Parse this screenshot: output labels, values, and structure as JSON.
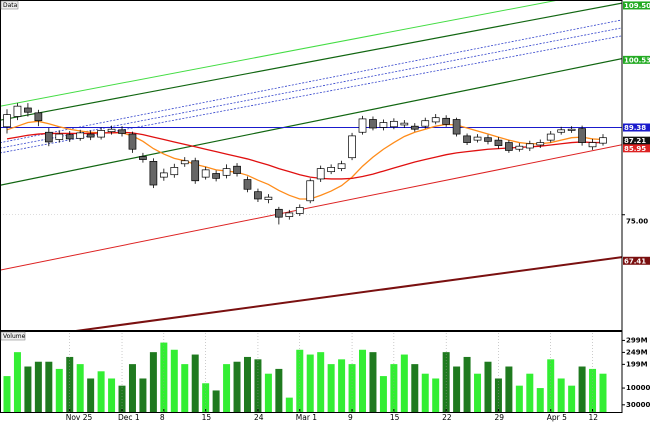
{
  "chart_data": {
    "type": "candlestick",
    "price_panel_label": "Data",
    "categories": [
      null,
      null,
      null,
      null,
      null,
      null,
      "Nov 25",
      null,
      null,
      null,
      null,
      "Dec 1",
      null,
      null,
      null,
      "8",
      null,
      null,
      null,
      "15",
      null,
      null,
      null,
      null,
      "24",
      null,
      null,
      null,
      "Mar 1",
      null,
      null,
      null,
      null,
      "9",
      null,
      null,
      null,
      "15",
      null,
      null,
      null,
      null,
      "22",
      null,
      null,
      null,
      null,
      "29",
      null,
      null,
      null,
      null,
      "Apr 5",
      null,
      null,
      null,
      "12",
      null
    ],
    "open": [
      89.5,
      91.2,
      92.6,
      91.8,
      88.6,
      87.4,
      88.2,
      87.6,
      88.3,
      87.8,
      88.7,
      89.0,
      88.3,
      84.6,
      83.8,
      81.2,
      81.6,
      83.4,
      83.9,
      81.2,
      81.8,
      81.5,
      83.0,
      80.8,
      78.8,
      77.5,
      75.9,
      74.7,
      75.2,
      77.3,
      80.9,
      82.1,
      82.6,
      84.4,
      88.6,
      90.7,
      89.4,
      89.5,
      89.8,
      89.6,
      89.6,
      90.3,
      90.9,
      90.7,
      88.0,
      87.3,
      87.7,
      87.3,
      86.9,
      85.8,
      86.0,
      86.5,
      87.3,
      88.6,
      88.9,
      89.2,
      86.2,
      86.8
    ],
    "high": [
      92.4,
      93.4,
      93.4,
      92.3,
      89.3,
      88.9,
      88.8,
      89.0,
      88.9,
      89.4,
      89.7,
      89.6,
      88.7,
      85.2,
      84.3,
      82.6,
      83.4,
      84.5,
      84.4,
      82.9,
      82.3,
      83.3,
      83.5,
      81.3,
      79.3,
      78.4,
      76.3,
      75.8,
      76.7,
      81.0,
      83.1,
      83.3,
      83.9,
      88.5,
      91.3,
      91.2,
      90.7,
      90.9,
      90.6,
      90.1,
      91.0,
      91.6,
      91.4,
      91.0,
      88.4,
      88.3,
      88.2,
      87.8,
      87.3,
      86.8,
      87.2,
      87.4,
      88.8,
      89.5,
      89.6,
      89.7,
      87.5,
      88.3
    ],
    "low": [
      88.4,
      90.6,
      91.2,
      89.6,
      86.3,
      86.9,
      87.0,
      87.2,
      87.3,
      87.4,
      88.2,
      87.9,
      85.2,
      83.6,
      79.4,
      80.6,
      81.1,
      82.9,
      80.1,
      80.8,
      80.5,
      81.0,
      81.3,
      78.7,
      77.1,
      76.9,
      73.4,
      74.2,
      74.8,
      76.9,
      80.4,
      81.7,
      82.2,
      84.0,
      88.2,
      88.9,
      88.9,
      89.1,
      89.3,
      88.7,
      89.2,
      89.9,
      89.5,
      87.9,
      86.5,
      86.9,
      86.6,
      85.9,
      85.2,
      85.4,
      85.5,
      86.0,
      86.9,
      88.2,
      88.5,
      86.4,
      85.7,
      86.4
    ],
    "close": [
      91.5,
      92.9,
      91.9,
      90.5,
      87.0,
      88.3,
      87.5,
      88.5,
      87.8,
      88.9,
      89.1,
      88.4,
      85.8,
      84.1,
      79.9,
      81.9,
      82.8,
      83.9,
      80.6,
      82.4,
      81.0,
      82.6,
      81.8,
      79.2,
      77.6,
      77.9,
      74.6,
      75.3,
      76.2,
      80.6,
      82.6,
      82.8,
      83.4,
      88.0,
      90.8,
      89.3,
      90.2,
      90.4,
      90.1,
      89.1,
      90.5,
      91.0,
      89.9,
      88.3,
      86.9,
      87.8,
      87.1,
      86.4,
      85.6,
      86.3,
      86.7,
      86.9,
      88.3,
      89.0,
      89.1,
      86.9,
      86.9,
      87.7
    ],
    "up_color": "#ffffff",
    "down_color": "#666666",
    "ylim": [
      56,
      110.4
    ],
    "yticks": [
      {
        "value": 75,
        "label": "75.00"
      }
    ],
    "series": [
      {
        "color": "#ff8c1a",
        "values": [
          89.0,
          89.6,
          90.2,
          90.4,
          90.0,
          89.5,
          89.1,
          88.8,
          88.6,
          88.5,
          88.5,
          88.5,
          88.0,
          87.1,
          85.9,
          85.0,
          84.3,
          83.9,
          83.3,
          82.9,
          82.4,
          82.2,
          82.0,
          81.5,
          80.7,
          80.0,
          79.0,
          78.2,
          77.6,
          77.6,
          78.2,
          78.9,
          79.8,
          81.2,
          83.0,
          84.5,
          85.8,
          86.9,
          87.9,
          88.6,
          89.1,
          89.6,
          89.9,
          89.8,
          89.3,
          88.8,
          88.3,
          87.8,
          87.3,
          86.9,
          86.7,
          86.7,
          86.9,
          87.3,
          87.7,
          87.8,
          87.5,
          87.4
        ]
      },
      {
        "color": "#e01010",
        "values": [
          87.5,
          87.8,
          88.1,
          88.3,
          88.4,
          88.4,
          88.4,
          88.4,
          88.4,
          88.5,
          88.5,
          88.6,
          88.5,
          88.2,
          87.8,
          87.4,
          87.0,
          86.6,
          86.2,
          85.8,
          85.4,
          85.0,
          84.6,
          84.2,
          83.7,
          83.2,
          82.6,
          82.1,
          81.6,
          81.2,
          81.0,
          80.9,
          80.9,
          81.0,
          81.3,
          81.7,
          82.2,
          82.7,
          83.2,
          83.7,
          84.1,
          84.5,
          84.9,
          85.2,
          85.4,
          85.6,
          85.8,
          85.9,
          86.0,
          86.1,
          86.2,
          86.3,
          86.5,
          86.7,
          86.9,
          87.0,
          86.9,
          86.9
        ]
      }
    ],
    "lines": [
      {
        "color": "#44dd44",
        "width": 1,
        "dash": false,
        "values": [
          93.1,
          111.8
        ]
      },
      {
        "color": "#116611",
        "width": 1.2,
        "dash": false,
        "values": [
          90.8,
          109.3
        ]
      },
      {
        "color": "#3344cc",
        "width": 0.8,
        "dash": true,
        "values": [
          87.1,
          106.5
        ]
      },
      {
        "color": "#3344cc",
        "width": 0.8,
        "dash": true,
        "values": [
          86.2,
          105.2
        ]
      },
      {
        "color": "#3344cc",
        "width": 0.8,
        "dash": true,
        "values": [
          85.4,
          103.9
        ]
      },
      {
        "color": "#116611",
        "width": 1.2,
        "dash": false,
        "values": [
          80.1,
          100.1
        ]
      },
      {
        "color": "#dd2222",
        "width": 1,
        "dash": false,
        "values": [
          66.1,
          85.9
        ]
      },
      {
        "color": "#1a1acc",
        "width": 1,
        "dash": false,
        "values": [
          89.38,
          89.38
        ]
      },
      {
        "color": "#7a1010",
        "width": 2,
        "dash": false,
        "values": [
          54.3,
          67.6
        ]
      }
    ],
    "price_labels": [
      {
        "value": 109.5,
        "label": "109.5000",
        "color": "#22aa22"
      },
      {
        "value": 100.53,
        "label": "100.5300",
        "color": "#22aa22"
      },
      {
        "value": 89.38,
        "label": "89.38",
        "color": "#1a1acc"
      },
      {
        "value": 87.21,
        "label": "87.21",
        "color": "#111111"
      },
      {
        "value": 85.95,
        "label": "85.95",
        "color": "#dd2222"
      },
      {
        "value": 67.41,
        "label": "67.41",
        "color": "#7a1010"
      }
    ],
    "volume": {
      "label": "Volume",
      "up_color": "#33ee33",
      "down_color": "#1f7a1f",
      "values": [
        150,
        250,
        190,
        210,
        210,
        180,
        230,
        200,
        140,
        170,
        140,
        110,
        200,
        140,
        250,
        290,
        260,
        200,
        240,
        120,
        90,
        200,
        210,
        230,
        220,
        160,
        180,
        60,
        260,
        240,
        250,
        200,
        220,
        200,
        260,
        250,
        150,
        200,
        240,
        200,
        160,
        140,
        250,
        190,
        230,
        160,
        210,
        140,
        190,
        110,
        160,
        100,
        220,
        140,
        110,
        190,
        180,
        160
      ],
      "ylim": [
        0,
        330
      ],
      "yticks": [
        {
          "value": 299,
          "label": "299M"
        },
        {
          "value": 249,
          "label": "249M"
        },
        {
          "value": 199,
          "label": "199M"
        },
        {
          "value": 100,
          "label": "100000K"
        },
        {
          "value": 30,
          "label": "30000K"
        }
      ]
    }
  }
}
